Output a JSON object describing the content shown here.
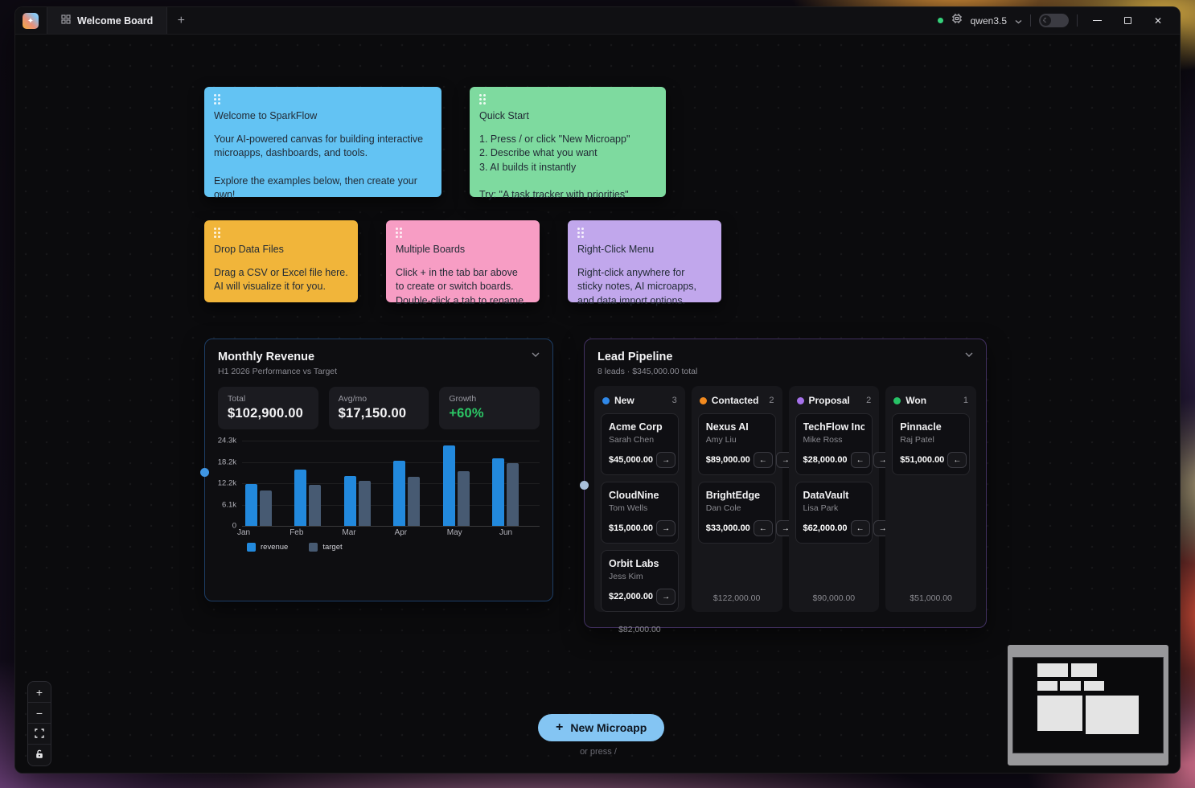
{
  "app": {
    "tab_label": "Welcome Board",
    "model": "qwen3.5"
  },
  "icons": {
    "sparkle": "✦",
    "new_tab": "+",
    "moon": "☾",
    "close": "✕",
    "zoom_in": "+",
    "zoom_out": "−",
    "new_microapp_plus": "+",
    "arrow_left": "←",
    "arrow_right": "→"
  },
  "notes": [
    {
      "id": "welcome",
      "color": "#63c3f3",
      "title": "Welcome to SparkFlow",
      "body": "Your AI-powered canvas for building interactive microapps, dashboards, and tools.\n\nExplore the examples below, then create your own!"
    },
    {
      "id": "quickstart",
      "color": "#7eda9f",
      "title": "Quick Start",
      "body": "1. Press  /  or click \"New Microapp\"\n2. Describe what you want\n3. AI builds it instantly\n\nTry: \"A task tracker with priorities\""
    },
    {
      "id": "dropdata",
      "color": "#f1b53a",
      "title": "Drop Data Files",
      "body": "Drag a CSV or Excel file here.\nAI will visualize it for you."
    },
    {
      "id": "boards",
      "color": "#f79dc4",
      "title": "Multiple Boards",
      "body": "Click + in the tab bar above\nto create or switch boards.\nDouble-click a tab to rename."
    },
    {
      "id": "rightclick",
      "color": "#c1a7ec",
      "title": "Right-Click Menu",
      "body": "Right-click anywhere for\nsticky notes, AI microapps,\nand data import options."
    }
  ],
  "revenue_widget": {
    "title": "Monthly Revenue",
    "subtitle": "H1 2026 Performance vs Target",
    "stats": [
      {
        "label": "Total",
        "value": "$102,900.00"
      },
      {
        "label": "Avg/mo",
        "value": "$17,150.00"
      },
      {
        "label": "Growth",
        "value": "+60%"
      }
    ],
    "growth_color": "#2bc765",
    "chart_data": {
      "type": "bar",
      "title": "Monthly Revenue",
      "categories": [
        "Jan",
        "Feb",
        "Mar",
        "Apr",
        "May",
        "Jun"
      ],
      "series": [
        {
          "name": "revenue",
          "color": "#2289dd",
          "values": [
            12000,
            16000,
            14200,
            18500,
            23000,
            19200
          ]
        },
        {
          "name": "target",
          "color": "#475a72",
          "values": [
            10000,
            11800,
            12900,
            13900,
            15700,
            17900
          ]
        }
      ],
      "ylim": [
        0,
        24300
      ],
      "yticks": [
        "24.3k",
        "18.2k",
        "12.2k",
        "6.1k",
        "0"
      ],
      "xlabel": "",
      "ylabel": "",
      "grid": true,
      "legend_position": "bottom"
    }
  },
  "pipeline_widget": {
    "title": "Lead Pipeline",
    "subtitle": "8 leads · $345,000.00 total",
    "columns": [
      {
        "name": "New",
        "dot_color": "#2f88e8",
        "count": "3",
        "total": "$82,000.00",
        "cards": [
          {
            "company": "Acme Corp",
            "contact": "Sarah Chen",
            "amount": "$45,000.00",
            "can_left": false,
            "can_right": true
          },
          {
            "company": "CloudNine",
            "contact": "Tom Wells",
            "amount": "$15,000.00",
            "can_left": false,
            "can_right": true
          },
          {
            "company": "Orbit Labs",
            "contact": "Jess Kim",
            "amount": "$22,000.00",
            "can_left": false,
            "can_right": true
          }
        ]
      },
      {
        "name": "Contacted",
        "dot_color": "#f28a1f",
        "count": "2",
        "total": "$122,000.00",
        "cards": [
          {
            "company": "Nexus AI",
            "contact": "Amy Liu",
            "amount": "$89,000.00",
            "can_left": true,
            "can_right": true
          },
          {
            "company": "BrightEdge",
            "contact": "Dan Cole",
            "amount": "$33,000.00",
            "can_left": true,
            "can_right": true
          }
        ]
      },
      {
        "name": "Proposal",
        "dot_color": "#a571ea",
        "count": "2",
        "total": "$90,000.00",
        "cards": [
          {
            "company": "TechFlow Inc",
            "contact": "Mike Ross",
            "amount": "$28,000.00",
            "can_left": true,
            "can_right": true
          },
          {
            "company": "DataVault",
            "contact": "Lisa Park",
            "amount": "$62,000.00",
            "can_left": true,
            "can_right": true
          }
        ]
      },
      {
        "name": "Won",
        "dot_color": "#27c266",
        "count": "1",
        "total": "$51,000.00",
        "cards": [
          {
            "company": "Pinnacle",
            "contact": "Raj Patel",
            "amount": "$51,000.00",
            "can_left": true,
            "can_right": false
          }
        ]
      }
    ]
  },
  "footer": {
    "new_microapp_label": "New Microapp",
    "hint": "or press /"
  }
}
